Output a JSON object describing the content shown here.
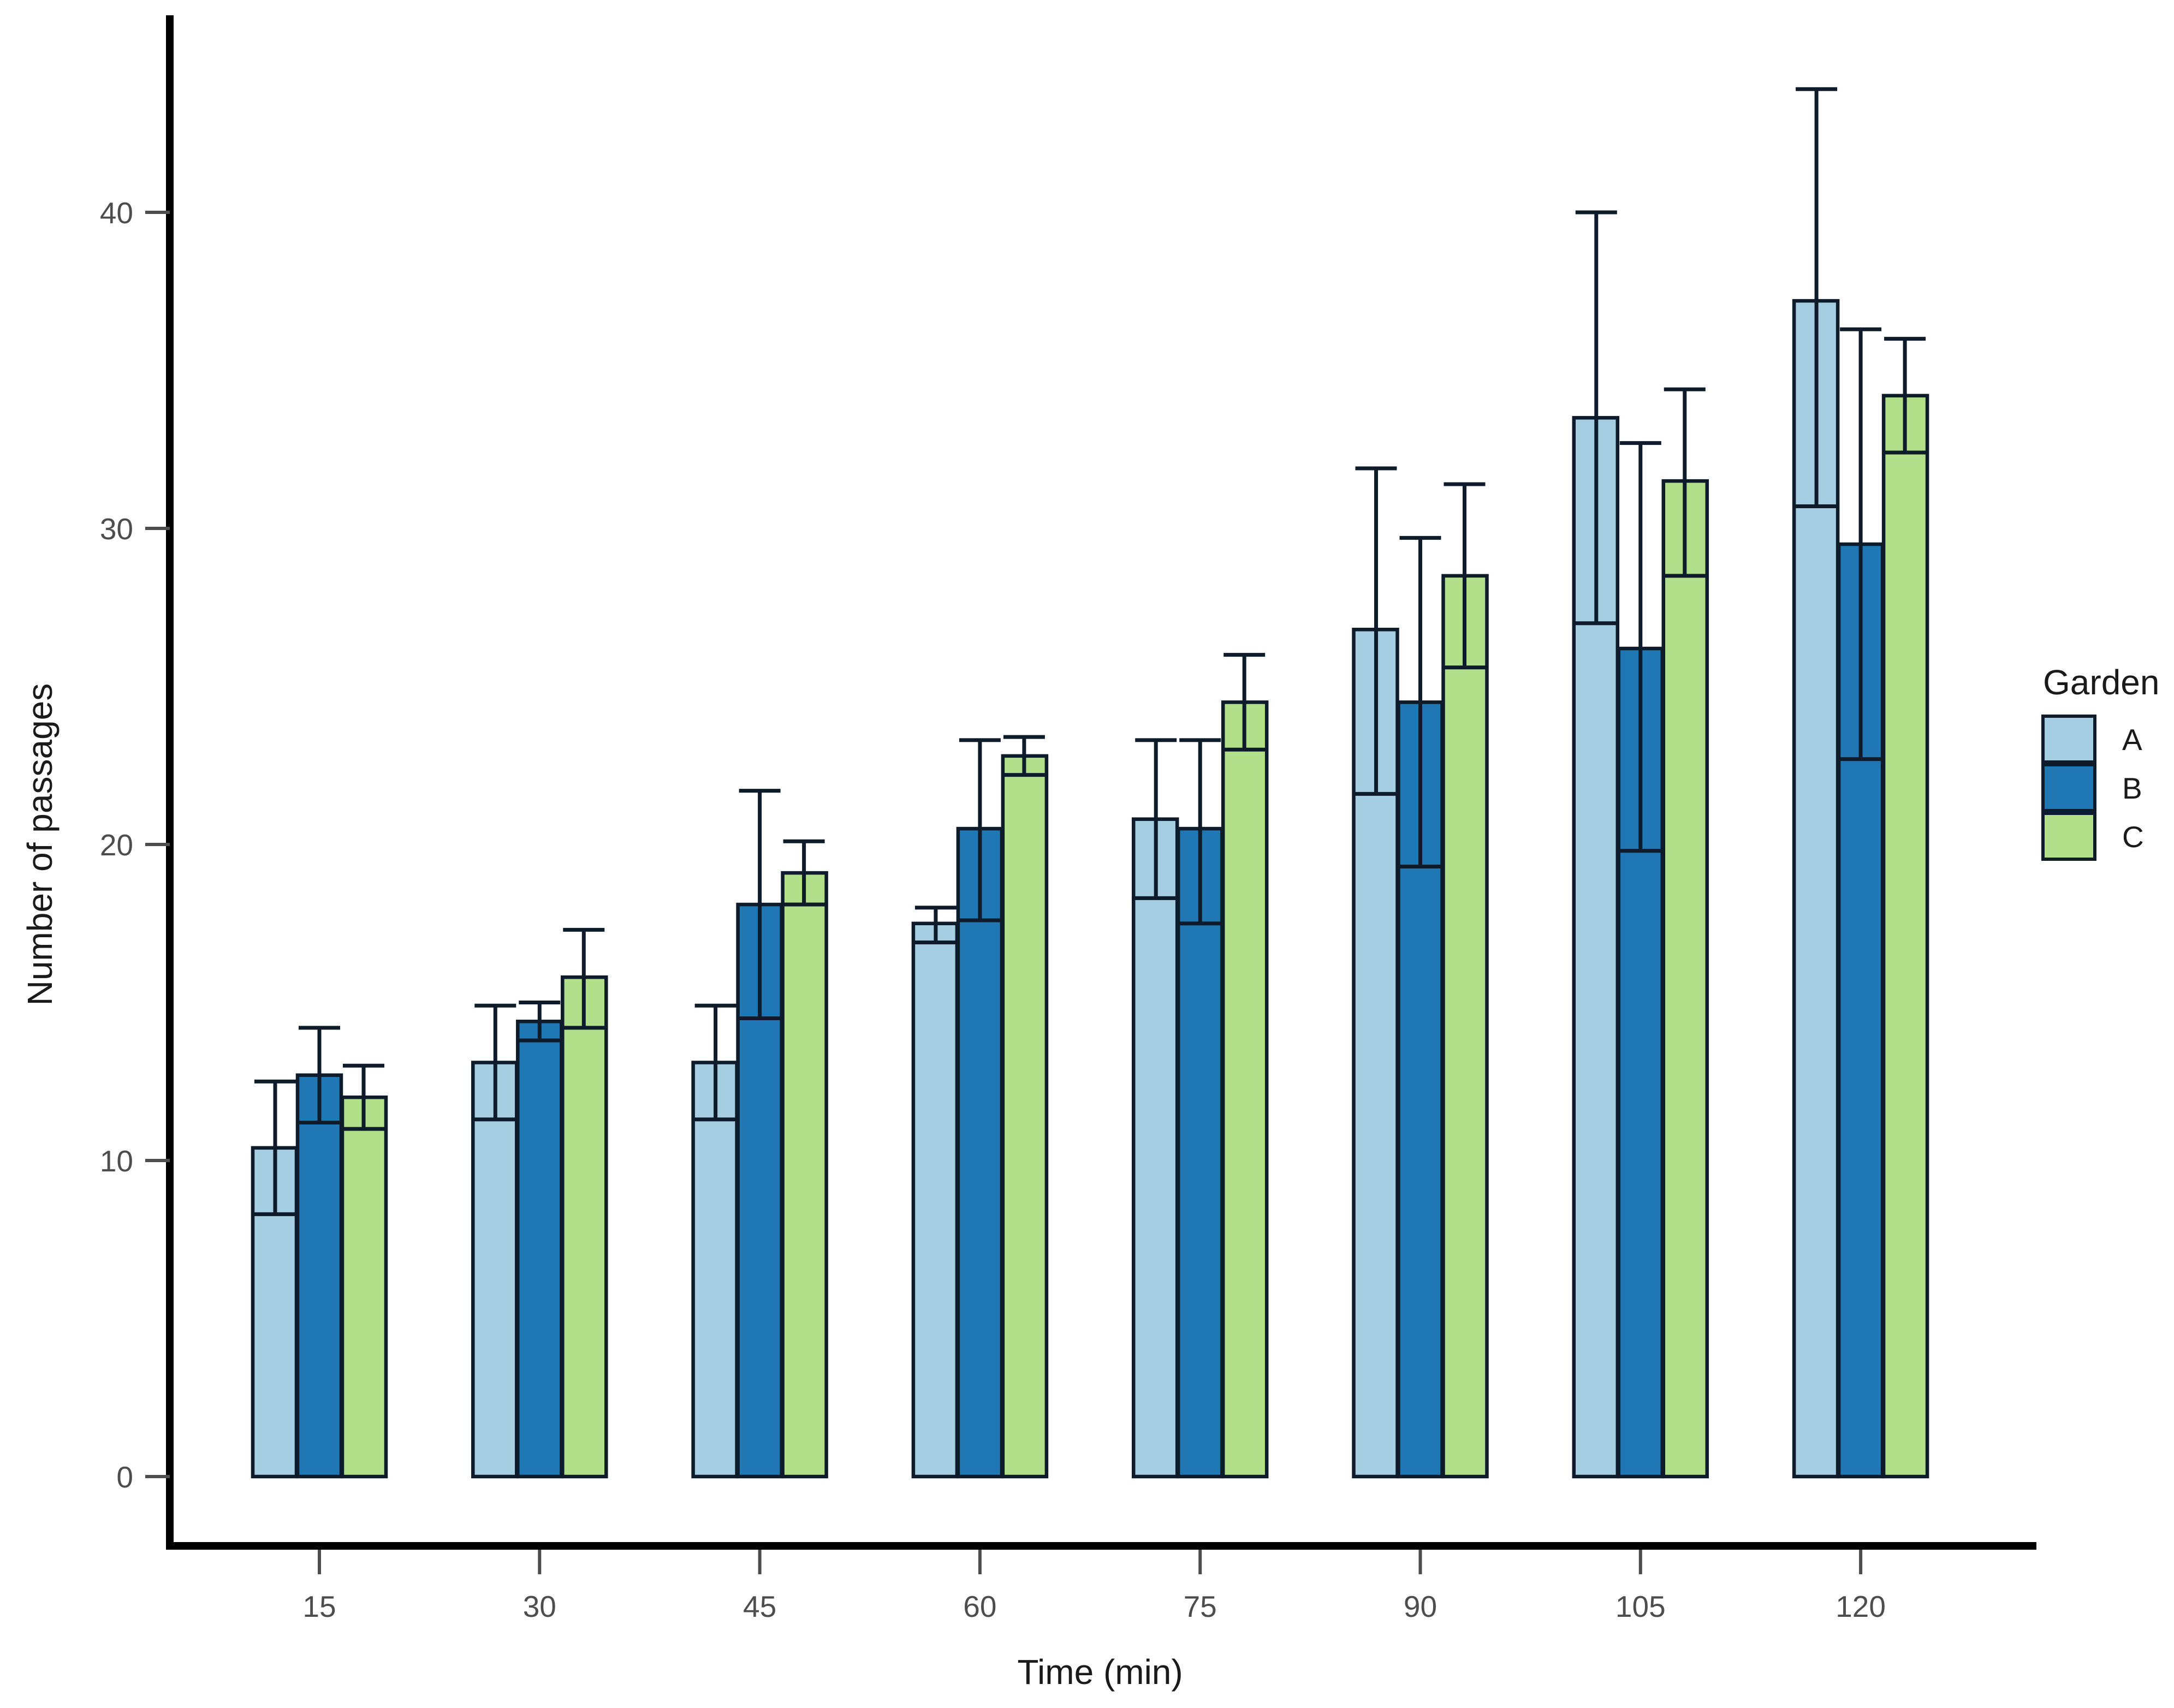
{
  "chart_data": {
    "type": "bar",
    "title": "",
    "xlabel": "Time (min)",
    "ylabel": "Number of passages",
    "categories": [
      "15",
      "30",
      "45",
      "60",
      "75",
      "90",
      "105",
      "120"
    ],
    "series": [
      {
        "name": "A",
        "color": "#a6cee3",
        "values": [
          10.4,
          13.1,
          13.1,
          17.5,
          20.8,
          26.8,
          33.5,
          37.2
        ],
        "err_low": [
          8.3,
          11.3,
          11.3,
          16.9,
          18.3,
          21.6,
          27.0,
          30.7
        ],
        "err_high": [
          12.5,
          14.9,
          14.9,
          18.0,
          23.3,
          31.9,
          40.0,
          43.9
        ]
      },
      {
        "name": "B",
        "color": "#1f78b4",
        "values": [
          12.7,
          14.4,
          18.1,
          20.5,
          20.5,
          24.5,
          26.2,
          29.5
        ],
        "err_low": [
          11.2,
          13.8,
          14.5,
          17.6,
          17.5,
          19.3,
          19.8,
          22.7
        ],
        "err_high": [
          14.2,
          15.0,
          21.7,
          23.3,
          23.3,
          29.7,
          32.7,
          36.3
        ]
      },
      {
        "name": "C",
        "color": "#b2df8a",
        "values": [
          12.0,
          15.8,
          19.1,
          22.8,
          24.5,
          28.5,
          31.5,
          34.2
        ],
        "err_low": [
          11.0,
          14.2,
          18.1,
          22.2,
          23.0,
          25.6,
          28.5,
          32.4
        ],
        "err_high": [
          13.0,
          17.3,
          20.1,
          23.4,
          26.0,
          31.4,
          34.4,
          36.0
        ]
      }
    ],
    "yticks": [
      0,
      10,
      20,
      30,
      40
    ],
    "ylim": [
      0,
      45
    ],
    "grid": false,
    "error_bars": true,
    "legend": {
      "title": "Garden",
      "position": "right",
      "labels": [
        "A",
        "B",
        "C"
      ]
    },
    "colors": {
      "axis_line": "#000000",
      "tick_label": "#4d4d4d",
      "axis_title": "#1a1a1a",
      "bar_outline": "#0d1b2a",
      "error_bar": "#0d1b2a",
      "background": "#ffffff"
    }
  }
}
